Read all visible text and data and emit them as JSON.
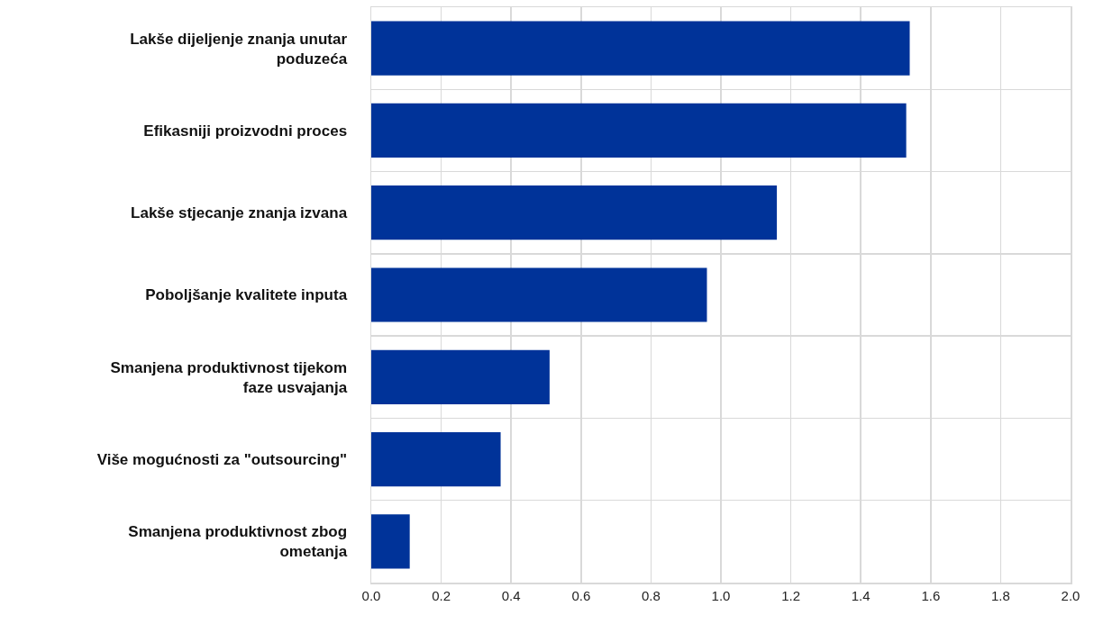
{
  "chart_data": {
    "type": "bar",
    "orientation": "horizontal",
    "categories": [
      "Lakše dijeljenje znanja unutar poduzeća",
      "Efikasniji proizvodni proces",
      "Lakše stjecanje znanja izvana",
      "Poboljšanje kvalitete inputa",
      "Smanjena produktivnost tijekom faze usvajanja",
      "Više mogućnosti za \"outsourcing\"",
      "Smanjena produktivnost zbog ometanja"
    ],
    "values": [
      1.54,
      1.53,
      1.16,
      0.96,
      0.51,
      0.37,
      0.11
    ],
    "color": "#003399",
    "xlim": [
      0,
      2.0
    ],
    "xticks": [
      {
        "value": 0,
        "label": "0.0"
      },
      {
        "value": 0.2,
        "label": "0.2"
      },
      {
        "value": 0.4,
        "label": "0.4"
      },
      {
        "value": 0.6,
        "label": "0.6"
      },
      {
        "value": 0.8,
        "label": "0.8"
      },
      {
        "value": 1.0,
        "label": "1.0"
      },
      {
        "value": 1.2,
        "label": "1.2"
      },
      {
        "value": 1.4,
        "label": "1.4"
      },
      {
        "value": 1.6,
        "label": "1.6"
      },
      {
        "value": 1.8,
        "label": "1.8"
      },
      {
        "value": 2.0,
        "label": "2.0"
      }
    ],
    "grid": true
  }
}
